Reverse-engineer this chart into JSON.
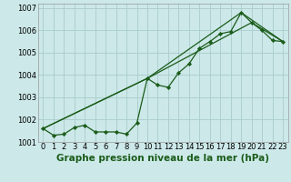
{
  "title": "Graphe pression niveau de la mer (hPa)",
  "bg_color": "#cce8e8",
  "grid_color": "#aacccc",
  "line_color": "#1a5c1a",
  "marker_color": "#1a5c1a",
  "xlim": [
    -0.5,
    23.5
  ],
  "ylim": [
    1001.0,
    1007.2
  ],
  "yticks": [
    1001,
    1002,
    1003,
    1004,
    1005,
    1006,
    1007
  ],
  "xticks": [
    0,
    1,
    2,
    3,
    4,
    5,
    6,
    7,
    8,
    9,
    10,
    11,
    12,
    13,
    14,
    15,
    16,
    17,
    18,
    19,
    20,
    21,
    22,
    23
  ],
  "series_main": {
    "x": [
      0,
      1,
      2,
      3,
      4,
      5,
      6,
      7,
      8,
      9,
      10,
      11,
      12,
      13,
      14,
      15,
      16,
      17,
      18,
      19,
      20,
      21,
      22,
      23
    ],
    "y": [
      1001.6,
      1001.3,
      1001.35,
      1001.65,
      1001.75,
      1001.45,
      1001.45,
      1001.45,
      1001.35,
      1001.85,
      1003.85,
      1003.55,
      1003.45,
      1004.1,
      1004.5,
      1005.2,
      1005.5,
      1005.85,
      1005.95,
      1006.8,
      1006.35,
      1006.0,
      1005.55,
      1005.5
    ]
  },
  "series_upper": {
    "x": [
      0,
      10,
      19,
      23
    ],
    "y": [
      1001.6,
      1003.85,
      1006.8,
      1005.5
    ]
  },
  "series_lower": {
    "x": [
      0,
      10,
      20,
      23
    ],
    "y": [
      1001.6,
      1003.85,
      1006.35,
      1005.5
    ]
  },
  "title_fontsize": 7.5,
  "tick_fontsize": 6.0
}
